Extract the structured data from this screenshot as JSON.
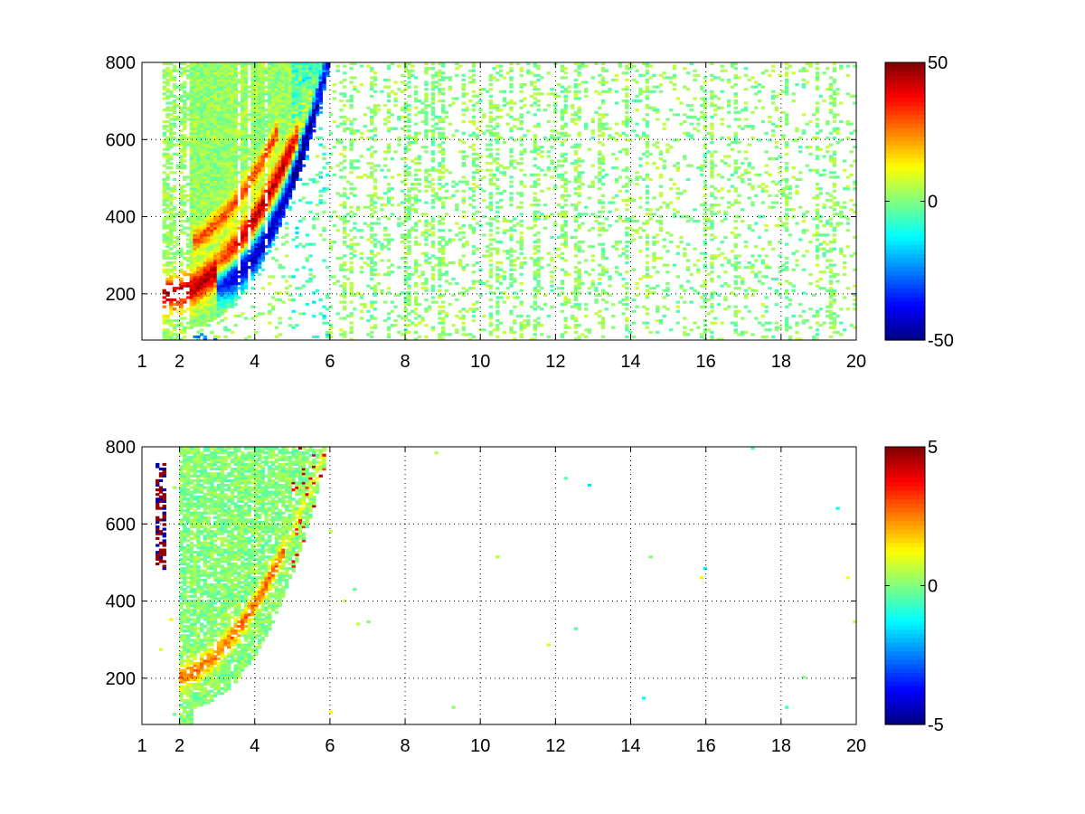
{
  "chart_data": [
    {
      "type": "heatmap",
      "title": "",
      "xlabel": "",
      "ylabel": "",
      "xlim": [
        1,
        20
      ],
      "ylim": [
        80,
        800
      ],
      "x_ticks": [
        1,
        2,
        4,
        6,
        8,
        10,
        12,
        14,
        16,
        18,
        20
      ],
      "x_tick_labels": [
        "1",
        "2",
        "4",
        "6",
        "8",
        "10",
        "12",
        "14",
        "16",
        "18",
        "20"
      ],
      "y_ticks": [
        200,
        400,
        600,
        800
      ],
      "y_tick_labels": [
        "200",
        "400",
        "600",
        "800"
      ],
      "grid": true,
      "colormap": "jet",
      "colorbar": {
        "min": -50,
        "max": 50,
        "tick_labels": [
          "50",
          "0",
          "-50"
        ],
        "tick_values": [
          50,
          0,
          -50
        ]
      },
      "description_of_values": "dense signal between x=1.5 and x=6 with curved bands ascending from (1.8,200) to (5.8,800); positive bands (up to ~45) above negative bands (down to ~-45); sparse near-zero noise for x>6",
      "features": [
        {
          "name": "positive band",
          "sign": 1,
          "x_from": 1.8,
          "x_to": 5.0,
          "y_start": 215,
          "y_end": 640,
          "peak": 45
        },
        {
          "name": "negative band",
          "sign": -1,
          "x_from": 3.0,
          "x_to": 5.9,
          "y_start": 240,
          "y_end": 800,
          "peak": -45
        }
      ]
    },
    {
      "type": "heatmap",
      "title": "",
      "xlabel": "",
      "ylabel": "",
      "xlim": [
        1,
        20
      ],
      "ylim": [
        80,
        800
      ],
      "x_ticks": [
        1,
        2,
        4,
        6,
        8,
        10,
        12,
        14,
        16,
        18,
        20
      ],
      "x_tick_labels": [
        "1",
        "2",
        "4",
        "6",
        "8",
        "10",
        "12",
        "14",
        "16",
        "18",
        "20"
      ],
      "y_ticks": [
        200,
        400,
        600,
        800
      ],
      "y_tick_labels": [
        "200",
        "400",
        "600",
        "800"
      ],
      "grid": true,
      "colormap": "jet",
      "colorbar": {
        "min": -5,
        "max": 5,
        "tick_labels": [
          "5",
          "0",
          "-5"
        ],
        "tick_values": [
          5,
          0,
          -5
        ]
      },
      "description_of_values": "values concentrated between x=2 and x=6 following same curved region; mostly near 0 (green), a few positive (~2-3) along lower band, a few negative (~-4) near x=5.7,y=360; isolated outliers near x=1.5",
      "features": [
        {
          "name": "main region",
          "x_from": 2.0,
          "x_to": 5.9,
          "y_start": 160,
          "y_end": 800,
          "typical": 0.3
        },
        {
          "name": "outlier column",
          "x": 1.5,
          "y_from": 480,
          "y_to": 760,
          "value": 5
        }
      ]
    }
  ]
}
